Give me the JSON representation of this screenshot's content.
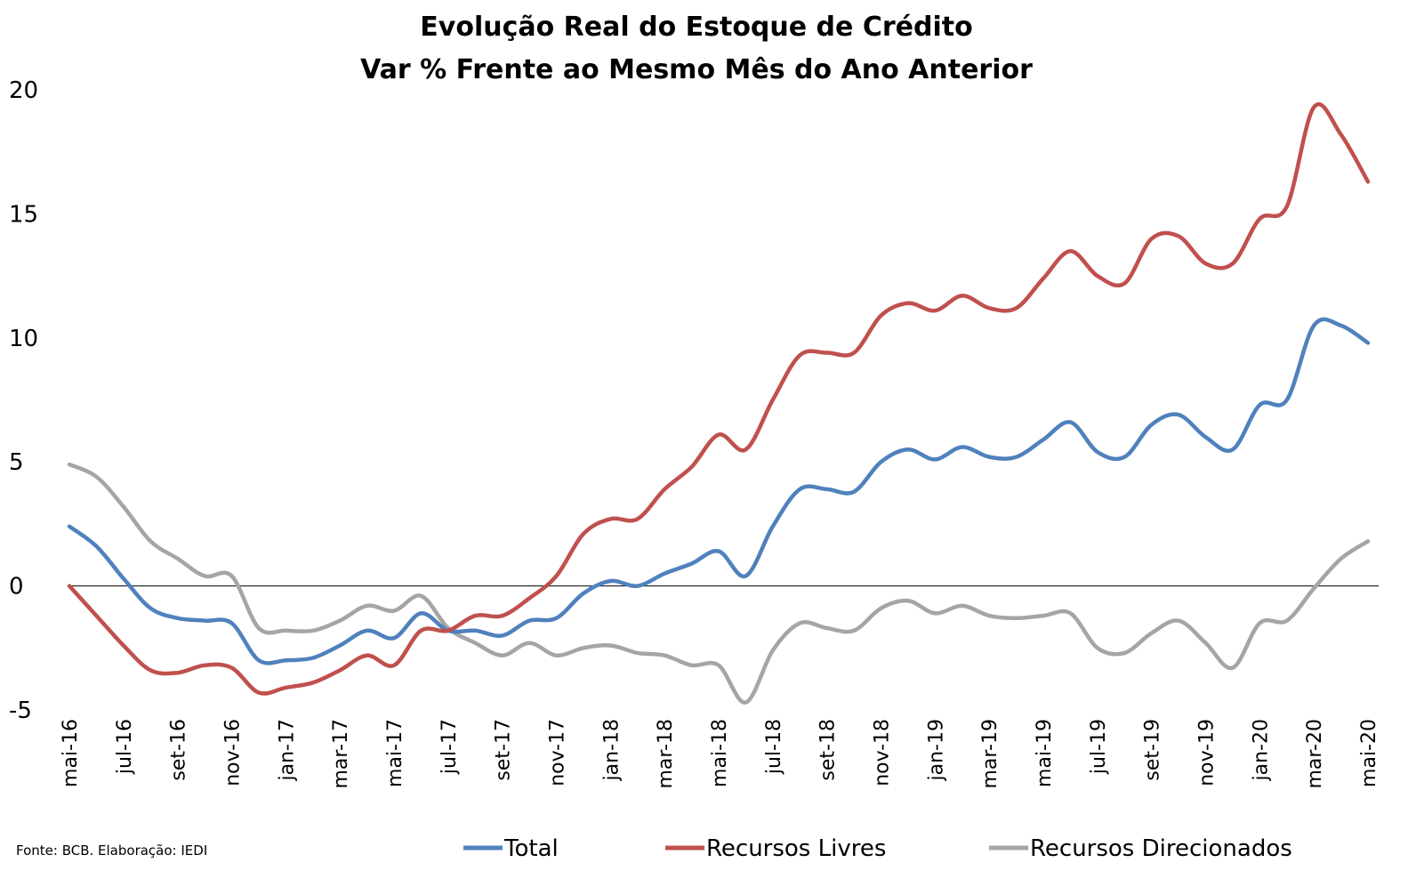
{
  "chart_data": {
    "type": "line",
    "title_lines": [
      "Evolução Real do Estoque de Crédito",
      "Var % Frente ao Mesmo Mês do Ano Anterior"
    ],
    "xlabel": "",
    "ylabel": "",
    "ylim": [
      -5,
      20
    ],
    "yticks": [
      "-5",
      "0",
      "5",
      "10",
      "15",
      "20"
    ],
    "grid": false,
    "legend_position": "bottom",
    "x": [
      "mai-16",
      "jun-16",
      "jul-16",
      "ago-16",
      "set-16",
      "out-16",
      "nov-16",
      "dez-16",
      "jan-17",
      "fev-17",
      "mar-17",
      "abr-17",
      "mai-17",
      "jun-17",
      "jul-17",
      "ago-17",
      "set-17",
      "out-17",
      "nov-17",
      "dez-17",
      "jan-18",
      "fev-18",
      "mar-18",
      "abr-18",
      "mai-18",
      "jun-18",
      "jul-18",
      "ago-18",
      "set-18",
      "out-18",
      "nov-18",
      "dez-18",
      "jan-19",
      "fev-19",
      "mar-19",
      "abr-19",
      "mai-19",
      "jun-19",
      "jul-19",
      "ago-19",
      "set-19",
      "out-19",
      "nov-19",
      "dez-19",
      "jan-20",
      "fev-20",
      "mar-20",
      "abr-20",
      "mai-20"
    ],
    "xtick_labels": [
      "mai-16",
      "jul-16",
      "set-16",
      "nov-16",
      "jan-17",
      "mar-17",
      "mai-17",
      "jul-17",
      "set-17",
      "nov-17",
      "jan-18",
      "mar-18",
      "mai-18",
      "jul-18",
      "set-18",
      "nov-18",
      "jan-19",
      "mar-19",
      "mai-19",
      "jul-19",
      "set-19",
      "nov-19",
      "jan-20",
      "mar-20",
      "mai-20"
    ],
    "series": [
      {
        "name": "Total",
        "color": "#4f81bd",
        "values": [
          2.4,
          1.6,
          0.3,
          -0.9,
          -1.3,
          -1.4,
          -1.5,
          -3.0,
          -3.0,
          -2.9,
          -2.4,
          -1.8,
          -2.1,
          -1.1,
          -1.8,
          -1.8,
          -2.0,
          -1.4,
          -1.3,
          -0.3,
          0.2,
          0.0,
          0.5,
          0.9,
          1.4,
          0.4,
          2.4,
          3.9,
          3.9,
          3.8,
          5.0,
          5.5,
          5.1,
          5.6,
          5.2,
          5.2,
          5.9,
          6.6,
          5.4,
          5.2,
          6.5,
          6.9,
          6.0,
          5.5,
          7.3,
          7.5,
          10.5,
          10.5,
          9.8
        ]
      },
      {
        "name": "Recursos Livres",
        "color": "#c0504d",
        "values": [
          0.0,
          -1.2,
          -2.4,
          -3.4,
          -3.5,
          -3.2,
          -3.3,
          -4.3,
          -4.1,
          -3.9,
          -3.4,
          -2.8,
          -3.2,
          -1.8,
          -1.8,
          -1.2,
          -1.2,
          -0.5,
          0.4,
          2.1,
          2.7,
          2.7,
          3.9,
          4.8,
          6.1,
          5.5,
          7.5,
          9.3,
          9.4,
          9.4,
          10.9,
          11.4,
          11.1,
          11.7,
          11.2,
          11.2,
          12.4,
          13.5,
          12.5,
          12.2,
          14.0,
          14.1,
          13.0,
          13.0,
          14.8,
          15.3,
          19.3,
          18.2,
          16.3
        ]
      },
      {
        "name": "Recursos Direcionados",
        "color": "#a5a5a5",
        "values": [
          4.9,
          4.4,
          3.2,
          1.8,
          1.1,
          0.4,
          0.4,
          -1.7,
          -1.8,
          -1.8,
          -1.4,
          -0.8,
          -1.0,
          -0.4,
          -1.7,
          -2.3,
          -2.8,
          -2.3,
          -2.8,
          -2.5,
          -2.4,
          -2.7,
          -2.8,
          -3.2,
          -3.2,
          -4.7,
          -2.6,
          -1.5,
          -1.7,
          -1.8,
          -0.9,
          -0.6,
          -1.1,
          -0.8,
          -1.2,
          -1.3,
          -1.2,
          -1.1,
          -2.5,
          -2.7,
          -1.9,
          -1.4,
          -2.3,
          -3.3,
          -1.5,
          -1.4,
          -0.1,
          1.1,
          1.8
        ]
      }
    ],
    "source_note": "Fonte: BCB. Elaboração: IEDI"
  }
}
